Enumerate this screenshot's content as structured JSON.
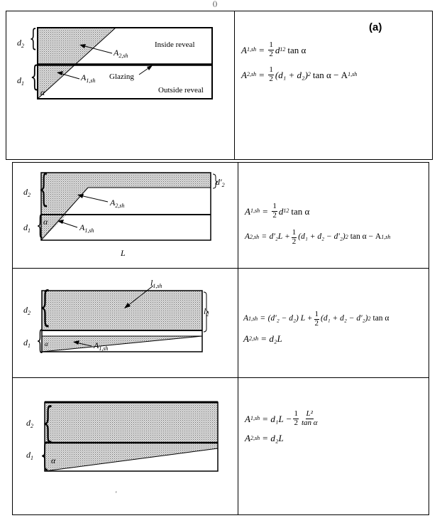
{
  "figure": {
    "panel_label": "(a)",
    "top_mark": "()",
    "bottom_tick": "'"
  },
  "rows": [
    {
      "diagram": {
        "label_d2": "d",
        "label_d2_sub": "2",
        "label_d1": "d",
        "label_d1_sub": "1",
        "label_a2": "A",
        "label_a2_sub": "2,sh",
        "label_a1": "A",
        "label_a1_sub": "1,sh",
        "label_alpha": "α",
        "label_inside": "Inside reveal",
        "label_glazing": "Glazing",
        "label_outside": "Outside reveal"
      },
      "eq1": {
        "lhs": "A",
        "lhs_sub": "1,sh",
        "rhs": "d",
        "rhs_sub": "1",
        "rhs_sup": "2",
        "tail": "tan α"
      },
      "eq2": {
        "lhs": "A",
        "lhs_sub": "2,sh",
        "body": "(d₁ + d₂)",
        "sup": "2",
        "tail": "tan α − A",
        "tail_sub": "1,sh"
      }
    },
    {
      "diagram": {
        "label_d2": "d",
        "label_d2_sub": "2",
        "label_d1": "d",
        "label_d1_sub": "1",
        "label_d2p": "d′",
        "label_d2p_sub": "2",
        "label_a2": "A",
        "label_a2_sub": "2,sh",
        "label_a1": "A",
        "label_a1_sub": "1,sh",
        "label_alpha": "α",
        "label_L": "L"
      },
      "eq1": {
        "lhs": "A",
        "lhs_sub": "1,sh",
        "rhs": "d",
        "rhs_sub": "1",
        "rhs_sup": "2",
        "tail": "tan α"
      },
      "eq2": {
        "lhs": "A",
        "lhs_sub": "2,sh",
        "pre": "d′₂L +",
        "body": "(d₁ + d₂ − d′₂)",
        "sup": "2",
        "tail": "tan α − A",
        "tail_sub": "1,sh"
      }
    },
    {
      "diagram": {
        "label_d2": "d",
        "label_d2_sub": "2",
        "label_d1": "d",
        "label_d1_sub": "1",
        "label_top": "l",
        "label_top_sub": "1,sh",
        "label_side": "l",
        "label_side_sub": "2",
        "label_a1": "A",
        "label_a1_sub": "1,sh",
        "label_alpha": "α"
      },
      "eq1": {
        "lhs": "A",
        "lhs_sub": "1,sh",
        "pre": "(d′₂ − d₂) L +",
        "body": "(d₁ + d₂ − d′₂)",
        "sup": "2",
        "tail": "tan α"
      },
      "eq2": {
        "lhs": "A",
        "lhs_sub": "2,sh",
        "rhs": "d₂L"
      }
    },
    {
      "diagram": {
        "label_d2": "d",
        "label_d2_sub": "2",
        "label_d1": "d",
        "label_d1_sub": "1",
        "label_alpha": "α"
      },
      "eq1": {
        "lhs": "A",
        "lhs_sub": "1,sh",
        "pre": "d₁L −",
        "frac_num": "L²",
        "frac_den": "tan α"
      },
      "eq2": {
        "lhs": "A",
        "lhs_sub": "2,sh",
        "rhs": "d₂L"
      }
    }
  ],
  "common": {
    "eq_sign": "=",
    "half_num": "1",
    "half_den": "2"
  }
}
